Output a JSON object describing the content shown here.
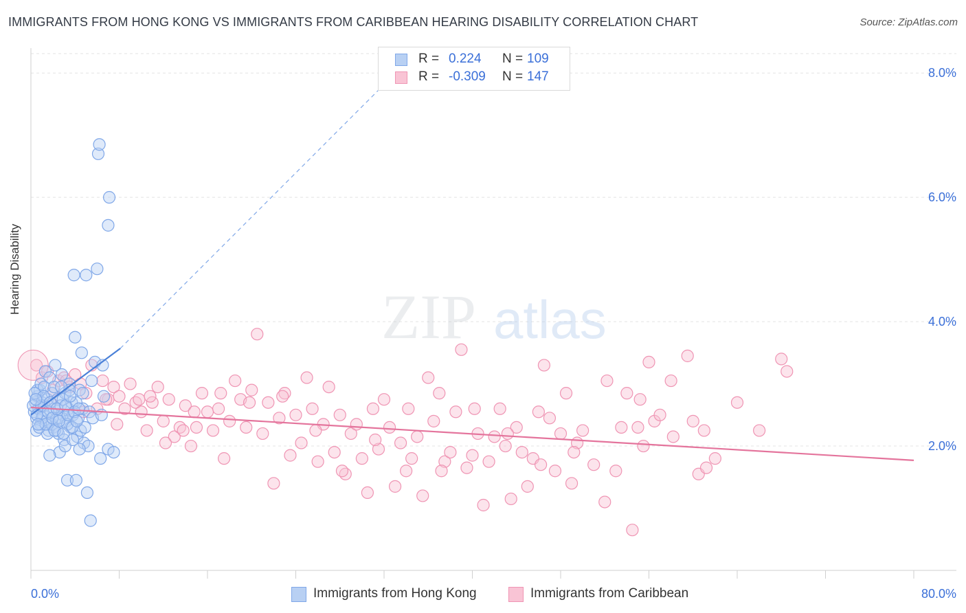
{
  "title": "IMMIGRANTS FROM HONG KONG VS IMMIGRANTS FROM CARIBBEAN HEARING DISABILITY CORRELATION CHART",
  "source": "Source: ZipAtlas.com",
  "watermark": {
    "zip": "ZIP",
    "atlas": "atlas"
  },
  "legend": {
    "r_key": "R =",
    "n_key": "N =",
    "series": [
      {
        "r": "0.224",
        "n": "109",
        "fill": "#b8d0f3",
        "stroke": "#7fa7e8"
      },
      {
        "r": "-0.309",
        "n": "147",
        "fill": "#f9c4d5",
        "stroke": "#ef94b3"
      }
    ]
  },
  "chart_data": {
    "type": "scatter",
    "title": "IMMIGRANTS FROM HONG KONG VS IMMIGRANTS FROM CARIBBEAN HEARING DISABILITY CORRELATION CHART",
    "xlabel": "",
    "ylabel": "Hearing Disability",
    "xlim": [
      0,
      80
    ],
    "ylim": [
      0,
      8.4
    ],
    "x_tick_labels": [
      "0.0%",
      "80.0%"
    ],
    "y_ticks": [
      2,
      4,
      6,
      8
    ],
    "y_tick_labels": [
      "2.0%",
      "4.0%",
      "6.0%",
      "8.0%"
    ],
    "grid": true,
    "legend_position": "bottom",
    "series": [
      {
        "name": "Immigrants from Hong Kong",
        "color": "#4a80d8",
        "marker_fill": "#b8d0f3",
        "marker_stroke": "#7fa7e8",
        "trend": {
          "x": [
            0,
            8.1
          ],
          "y": [
            2.5,
            3.57
          ],
          "extended_to": [
            35.3,
            8.4
          ]
        },
        "points": [
          [
            0.3,
            2.55
          ],
          [
            0.4,
            2.7
          ],
          [
            0.5,
            2.45
          ],
          [
            0.6,
            2.8
          ],
          [
            0.7,
            2.6
          ],
          [
            0.8,
            2.9
          ],
          [
            0.9,
            2.35
          ],
          [
            1.0,
            2.7
          ],
          [
            1.1,
            2.5
          ],
          [
            1.2,
            2.65
          ],
          [
            1.3,
            3.2
          ],
          [
            1.4,
            2.4
          ],
          [
            1.5,
            2.75
          ],
          [
            1.6,
            2.25
          ],
          [
            1.7,
            3.1
          ],
          [
            1.8,
            2.55
          ],
          [
            1.9,
            2.85
          ],
          [
            2.0,
            2.3
          ],
          [
            2.1,
            2.6
          ],
          [
            2.2,
            3.3
          ],
          [
            2.3,
            2.45
          ],
          [
            2.4,
            2.75
          ],
          [
            2.5,
            2.2
          ],
          [
            2.6,
            1.9
          ],
          [
            2.7,
            2.65
          ],
          [
            2.8,
            3.15
          ],
          [
            2.9,
            2.5
          ],
          [
            3.0,
            2.1
          ],
          [
            3.1,
            2.85
          ],
          [
            3.2,
            2.4
          ],
          [
            3.3,
            1.45
          ],
          [
            3.4,
            2.6
          ],
          [
            3.5,
            3.0
          ],
          [
            3.6,
            2.3
          ],
          [
            3.7,
            2.7
          ],
          [
            3.8,
            2.5
          ],
          [
            3.9,
            4.75
          ],
          [
            4.0,
            3.75
          ],
          [
            4.1,
            1.45
          ],
          [
            4.2,
            2.15
          ],
          [
            4.3,
            2.45
          ],
          [
            4.4,
            2.9
          ],
          [
            4.5,
            2.25
          ],
          [
            4.6,
            3.5
          ],
          [
            4.7,
            2.6
          ],
          [
            4.8,
            2.05
          ],
          [
            4.9,
            2.3
          ],
          [
            5.0,
            4.75
          ],
          [
            5.1,
            1.25
          ],
          [
            5.2,
            2.0
          ],
          [
            5.3,
            2.55
          ],
          [
            5.4,
            0.8
          ],
          [
            5.5,
            3.05
          ],
          [
            5.6,
            2.45
          ],
          [
            5.8,
            3.35
          ],
          [
            6.0,
            4.85
          ],
          [
            6.1,
            6.7
          ],
          [
            6.2,
            6.85
          ],
          [
            6.3,
            1.8
          ],
          [
            6.4,
            2.5
          ],
          [
            6.5,
            3.3
          ],
          [
            6.6,
            2.8
          ],
          [
            7.0,
            1.95
          ],
          [
            7.1,
            6.0
          ],
          [
            7.0,
            5.55
          ],
          [
            7.5,
            1.9
          ],
          [
            0.5,
            2.25
          ],
          [
            0.6,
            2.9
          ],
          [
            0.9,
            3.0
          ],
          [
            1.0,
            2.45
          ],
          [
            1.2,
            2.95
          ],
          [
            1.5,
            2.2
          ],
          [
            1.7,
            1.85
          ],
          [
            1.9,
            2.35
          ],
          [
            2.1,
            2.95
          ],
          [
            2.4,
            2.25
          ],
          [
            2.6,
            2.45
          ],
          [
            2.9,
            2.75
          ],
          [
            3.1,
            2.0
          ],
          [
            3.3,
            2.35
          ],
          [
            3.5,
            2.9
          ],
          [
            3.8,
            2.1
          ],
          [
            4.1,
            2.7
          ],
          [
            4.4,
            1.95
          ],
          [
            4.7,
            2.85
          ],
          [
            0.2,
            2.65
          ],
          [
            0.35,
            2.85
          ],
          [
            0.55,
            2.5
          ],
          [
            0.75,
            2.3
          ],
          [
            0.95,
            2.65
          ],
          [
            1.15,
            2.8
          ],
          [
            1.35,
            2.35
          ],
          [
            1.55,
            2.55
          ],
          [
            1.75,
            2.7
          ],
          [
            1.95,
            2.45
          ],
          [
            2.15,
            2.25
          ],
          [
            2.35,
            2.6
          ],
          [
            2.55,
            2.4
          ],
          [
            2.75,
            2.95
          ],
          [
            2.95,
            2.2
          ],
          [
            3.15,
            2.65
          ],
          [
            3.35,
            2.5
          ],
          [
            3.55,
            2.8
          ],
          [
            3.75,
            2.3
          ],
          [
            3.95,
            2.55
          ],
          [
            4.15,
            2.4
          ],
          [
            4.35,
            2.6
          ],
          [
            0.45,
            2.75
          ],
          [
            0.65,
            2.35
          ]
        ]
      },
      {
        "name": "Immigrants from Caribbean",
        "color": "#e4749c",
        "marker_fill": "#f9c4d5",
        "marker_stroke": "#ef94b3",
        "trend": {
          "x": [
            0,
            80
          ],
          "y": [
            2.62,
            1.77
          ]
        },
        "points": [
          [
            0.5,
            3.3
          ],
          [
            1.0,
            3.1
          ],
          [
            1.5,
            3.2
          ],
          [
            2.0,
            2.9
          ],
          [
            2.5,
            3.05
          ],
          [
            3.0,
            3.1
          ],
          [
            3.5,
            2.95
          ],
          [
            4.0,
            3.15
          ],
          [
            4.5,
            3.0
          ],
          [
            5.0,
            2.85
          ],
          [
            5.5,
            3.3
          ],
          [
            6.0,
            2.6
          ],
          [
            6.5,
            3.05
          ],
          [
            7.0,
            2.75
          ],
          [
            7.5,
            2.95
          ],
          [
            8.0,
            2.8
          ],
          [
            8.5,
            2.6
          ],
          [
            9.0,
            3.0
          ],
          [
            9.5,
            2.7
          ],
          [
            10.0,
            2.55
          ],
          [
            10.5,
            2.25
          ],
          [
            11.0,
            2.7
          ],
          [
            11.5,
            2.95
          ],
          [
            12.0,
            2.4
          ],
          [
            12.5,
            2.75
          ],
          [
            13.0,
            2.15
          ],
          [
            13.5,
            2.3
          ],
          [
            14.0,
            2.65
          ],
          [
            14.5,
            2.0
          ],
          [
            15.0,
            2.3
          ],
          [
            15.5,
            2.85
          ],
          [
            16.0,
            2.55
          ],
          [
            16.5,
            2.25
          ],
          [
            17.0,
            2.6
          ],
          [
            17.5,
            1.8
          ],
          [
            18.0,
            2.4
          ],
          [
            18.5,
            3.05
          ],
          [
            19.0,
            2.75
          ],
          [
            19.5,
            2.3
          ],
          [
            20.0,
            2.9
          ],
          [
            20.5,
            3.8
          ],
          [
            21.0,
            2.2
          ],
          [
            21.5,
            2.7
          ],
          [
            22.0,
            1.4
          ],
          [
            22.5,
            2.45
          ],
          [
            23.0,
            2.85
          ],
          [
            23.5,
            1.85
          ],
          [
            24.0,
            2.5
          ],
          [
            24.5,
            2.05
          ],
          [
            25.0,
            3.1
          ],
          [
            25.5,
            2.6
          ],
          [
            26.0,
            1.75
          ],
          [
            26.5,
            2.35
          ],
          [
            27.0,
            2.95
          ],
          [
            27.5,
            1.9
          ],
          [
            28.0,
            2.5
          ],
          [
            28.5,
            1.55
          ],
          [
            29.0,
            2.2
          ],
          [
            29.5,
            2.35
          ],
          [
            30.0,
            1.8
          ],
          [
            30.5,
            1.25
          ],
          [
            31.0,
            2.6
          ],
          [
            31.5,
            1.95
          ],
          [
            32.0,
            2.75
          ],
          [
            32.5,
            2.3
          ],
          [
            33.0,
            1.35
          ],
          [
            33.5,
            2.05
          ],
          [
            34.0,
            1.6
          ],
          [
            34.5,
            1.8
          ],
          [
            35.0,
            2.15
          ],
          [
            35.5,
            1.2
          ],
          [
            36.0,
            3.1
          ],
          [
            36.5,
            2.4
          ],
          [
            37.0,
            2.85
          ],
          [
            37.5,
            1.75
          ],
          [
            38.0,
            1.9
          ],
          [
            38.5,
            2.55
          ],
          [
            39.0,
            3.55
          ],
          [
            39.5,
            1.65
          ],
          [
            40.0,
            1.85
          ],
          [
            40.5,
            2.2
          ],
          [
            41.0,
            1.05
          ],
          [
            41.5,
            1.75
          ],
          [
            42.0,
            2.15
          ],
          [
            42.5,
            2.6
          ],
          [
            43.0,
            2.0
          ],
          [
            43.5,
            1.15
          ],
          [
            44.0,
            2.3
          ],
          [
            44.5,
            1.9
          ],
          [
            45.0,
            1.35
          ],
          [
            45.5,
            1.8
          ],
          [
            46.0,
            2.55
          ],
          [
            46.5,
            3.3
          ],
          [
            47.0,
            2.45
          ],
          [
            47.5,
            1.6
          ],
          [
            48.0,
            2.2
          ],
          [
            48.5,
            2.85
          ],
          [
            49.0,
            1.4
          ],
          [
            49.5,
            2.05
          ],
          [
            50.0,
            2.25
          ],
          [
            51.0,
            1.7
          ],
          [
            52.0,
            1.1
          ],
          [
            53.0,
            1.6
          ],
          [
            53.5,
            2.3
          ],
          [
            54.0,
            2.85
          ],
          [
            54.5,
            0.65
          ],
          [
            55.0,
            2.3
          ],
          [
            55.5,
            2.0
          ],
          [
            56.0,
            3.35
          ],
          [
            56.5,
            2.4
          ],
          [
            57.0,
            2.5
          ],
          [
            58.0,
            3.05
          ],
          [
            59.5,
            3.45
          ],
          [
            60.0,
            2.4
          ],
          [
            60.5,
            1.55
          ],
          [
            61.0,
            2.25
          ],
          [
            62.0,
            1.8
          ],
          [
            64.0,
            2.7
          ],
          [
            66.0,
            2.25
          ],
          [
            68.0,
            3.4
          ],
          [
            68.5,
            3.2
          ],
          [
            3.2,
            3.05
          ],
          [
            6.8,
            2.75
          ],
          [
            9.8,
            2.75
          ],
          [
            12.2,
            2.05
          ],
          [
            14.8,
            2.55
          ],
          [
            17.2,
            2.85
          ],
          [
            19.8,
            2.7
          ],
          [
            22.8,
            2.8
          ],
          [
            25.8,
            2.25
          ],
          [
            28.2,
            1.6
          ],
          [
            31.2,
            2.1
          ],
          [
            34.2,
            2.6
          ],
          [
            37.2,
            1.6
          ],
          [
            40.2,
            2.6
          ],
          [
            43.2,
            2.2
          ],
          [
            46.2,
            1.7
          ],
          [
            49.2,
            1.9
          ],
          [
            52.2,
            3.05
          ],
          [
            55.2,
            2.75
          ],
          [
            58.2,
            2.15
          ],
          [
            61.2,
            1.65
          ],
          [
            1.8,
            2.7
          ],
          [
            4.8,
            2.55
          ],
          [
            7.8,
            2.35
          ],
          [
            10.8,
            2.8
          ],
          [
            13.8,
            2.25
          ]
        ]
      }
    ]
  }
}
